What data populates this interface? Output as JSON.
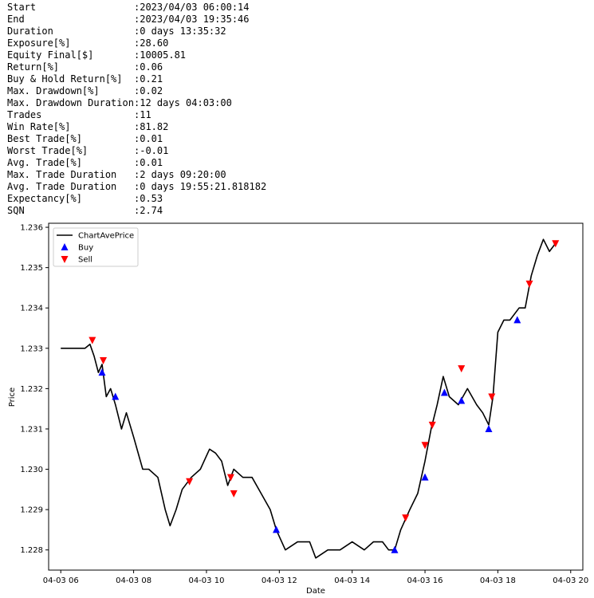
{
  "stats": [
    {
      "key": "Start",
      "value": ":2023/04/03 06:00:14"
    },
    {
      "key": "End",
      "value": ":2023/04/03 19:35:46"
    },
    {
      "key": "Duration",
      "value": ":0 days 13:35:32"
    },
    {
      "key": "Exposure[%]",
      "value": ":28.60"
    },
    {
      "key": "Equity Final[$]",
      "value": ":10005.81"
    },
    {
      "key": "Return[%]",
      "value": ":0.06"
    },
    {
      "key": "Buy & Hold Return[%]",
      "value": ":0.21"
    },
    {
      "key": "Max. Drawdown[%]",
      "value": ":0.02"
    },
    {
      "key": "Max. Drawdown Duration",
      "value": ":12 days 04:03:00"
    },
    {
      "key": "Trades",
      "value": ":11"
    },
    {
      "key": "Win Rate[%]",
      "value": ":81.82"
    },
    {
      "key": "Best Trade[%]",
      "value": ":0.01"
    },
    {
      "key": "Worst Trade[%]",
      "value": ":-0.01"
    },
    {
      "key": "Avg. Trade[%]",
      "value": ":0.01"
    },
    {
      "key": "Max. Trade Duration",
      "value": ":2 days 09:20:00"
    },
    {
      "key": "Avg. Trade Duration",
      "value": ":0 days 19:55:21.818182"
    },
    {
      "key": "Expectancy[%]",
      "value": ":0.53"
    },
    {
      "key": "SQN",
      "value": ":2.74"
    }
  ],
  "chart_data": {
    "type": "line",
    "xlabel": "Date",
    "ylabel": "Price",
    "xlim": [
      "2023-04-03 05:40",
      "2023-04-03 20:20"
    ],
    "ylim": [
      1.2275,
      1.2361
    ],
    "x_ticks": [
      {
        "t": "2023-04-03 06:00",
        "label": "04-03 06"
      },
      {
        "t": "2023-04-03 08:00",
        "label": "04-03 08"
      },
      {
        "t": "2023-04-03 10:00",
        "label": "04-03 10"
      },
      {
        "t": "2023-04-03 12:00",
        "label": "04-03 12"
      },
      {
        "t": "2023-04-03 14:00",
        "label": "04-03 14"
      },
      {
        "t": "2023-04-03 16:00",
        "label": "04-03 16"
      },
      {
        "t": "2023-04-03 18:00",
        "label": "04-03 18"
      },
      {
        "t": "2023-04-03 20:00",
        "label": "04-03 20"
      }
    ],
    "y_ticks": [
      {
        "v": 1.228,
        "label": "1.228"
      },
      {
        "v": 1.229,
        "label": "1.229"
      },
      {
        "v": 1.23,
        "label": "1.230"
      },
      {
        "v": 1.231,
        "label": "1.231"
      },
      {
        "v": 1.232,
        "label": "1.232"
      },
      {
        "v": 1.233,
        "label": "1.233"
      },
      {
        "v": 1.234,
        "label": "1.234"
      },
      {
        "v": 1.235,
        "label": "1.235"
      },
      {
        "v": 1.236,
        "label": "1.236"
      }
    ],
    "legend_position": "top-left",
    "legend": [
      {
        "label": "ChartAvePrice",
        "marker": "line",
        "color": "#000000"
      },
      {
        "label": "Buy",
        "marker": "triangle-up",
        "color": "#0000ff"
      },
      {
        "label": "Sell",
        "marker": "triangle-down",
        "color": "#ff0000"
      }
    ],
    "series": [
      {
        "name": "ChartAvePrice",
        "color": "#000000",
        "points": [
          {
            "x": "2023-04-03 06:00",
            "y": 1.233
          },
          {
            "x": "2023-04-03 06:20",
            "y": 1.233
          },
          {
            "x": "2023-04-03 06:40",
            "y": 1.233
          },
          {
            "x": "2023-04-03 06:48",
            "y": 1.2331
          },
          {
            "x": "2023-04-03 06:55",
            "y": 1.2328
          },
          {
            "x": "2023-04-03 07:02",
            "y": 1.2324
          },
          {
            "x": "2023-04-03 07:08",
            "y": 1.2326
          },
          {
            "x": "2023-04-03 07:15",
            "y": 1.2318
          },
          {
            "x": "2023-04-03 07:22",
            "y": 1.232
          },
          {
            "x": "2023-04-03 07:30",
            "y": 1.2316
          },
          {
            "x": "2023-04-03 07:40",
            "y": 1.231
          },
          {
            "x": "2023-04-03 07:48",
            "y": 1.2314
          },
          {
            "x": "2023-04-03 08:00",
            "y": 1.2308
          },
          {
            "x": "2023-04-03 08:15",
            "y": 1.23
          },
          {
            "x": "2023-04-03 08:25",
            "y": 1.23
          },
          {
            "x": "2023-04-03 08:40",
            "y": 1.2298
          },
          {
            "x": "2023-04-03 08:52",
            "y": 1.229
          },
          {
            "x": "2023-04-03 09:00",
            "y": 1.2286
          },
          {
            "x": "2023-04-03 09:10",
            "y": 1.229
          },
          {
            "x": "2023-04-03 09:20",
            "y": 1.2295
          },
          {
            "x": "2023-04-03 09:35",
            "y": 1.2298
          },
          {
            "x": "2023-04-03 09:50",
            "y": 1.23
          },
          {
            "x": "2023-04-03 10:05",
            "y": 1.2305
          },
          {
            "x": "2023-04-03 10:15",
            "y": 1.2304
          },
          {
            "x": "2023-04-03 10:25",
            "y": 1.2302
          },
          {
            "x": "2023-04-03 10:35",
            "y": 1.2296
          },
          {
            "x": "2023-04-03 10:45",
            "y": 1.23
          },
          {
            "x": "2023-04-03 11:00",
            "y": 1.2298
          },
          {
            "x": "2023-04-03 11:15",
            "y": 1.2298
          },
          {
            "x": "2023-04-03 11:30",
            "y": 1.2294
          },
          {
            "x": "2023-04-03 11:45",
            "y": 1.229
          },
          {
            "x": "2023-04-03 11:55",
            "y": 1.2285
          },
          {
            "x": "2023-04-03 12:10",
            "y": 1.228
          },
          {
            "x": "2023-04-03 12:30",
            "y": 1.2282
          },
          {
            "x": "2023-04-03 12:50",
            "y": 1.2282
          },
          {
            "x": "2023-04-03 13:00",
            "y": 1.2278
          },
          {
            "x": "2023-04-03 13:20",
            "y": 1.228
          },
          {
            "x": "2023-04-03 13:40",
            "y": 1.228
          },
          {
            "x": "2023-04-03 14:00",
            "y": 1.2282
          },
          {
            "x": "2023-04-03 14:20",
            "y": 1.228
          },
          {
            "x": "2023-04-03 14:35",
            "y": 1.2282
          },
          {
            "x": "2023-04-03 14:50",
            "y": 1.2282
          },
          {
            "x": "2023-04-03 15:00",
            "y": 1.228
          },
          {
            "x": "2023-04-03 15:10",
            "y": 1.228
          },
          {
            "x": "2023-04-03 15:20",
            "y": 1.2285
          },
          {
            "x": "2023-04-03 15:35",
            "y": 1.229
          },
          {
            "x": "2023-04-03 15:48",
            "y": 1.2294
          },
          {
            "x": "2023-04-03 16:00",
            "y": 1.2302
          },
          {
            "x": "2023-04-03 16:10",
            "y": 1.231
          },
          {
            "x": "2023-04-03 16:20",
            "y": 1.2316
          },
          {
            "x": "2023-04-03 16:30",
            "y": 1.2323
          },
          {
            "x": "2023-04-03 16:40",
            "y": 1.2318
          },
          {
            "x": "2023-04-03 16:55",
            "y": 1.2316
          },
          {
            "x": "2023-04-03 17:10",
            "y": 1.232
          },
          {
            "x": "2023-04-03 17:25",
            "y": 1.2316
          },
          {
            "x": "2023-04-03 17:35",
            "y": 1.2314
          },
          {
            "x": "2023-04-03 17:45",
            "y": 1.2311
          },
          {
            "x": "2023-04-03 17:52",
            "y": 1.2318
          },
          {
            "x": "2023-04-03 18:00",
            "y": 1.2334
          },
          {
            "x": "2023-04-03 18:10",
            "y": 1.2337
          },
          {
            "x": "2023-04-03 18:20",
            "y": 1.2337
          },
          {
            "x": "2023-04-03 18:35",
            "y": 1.234
          },
          {
            "x": "2023-04-03 18:45",
            "y": 1.234
          },
          {
            "x": "2023-04-03 18:55",
            "y": 1.2348
          },
          {
            "x": "2023-04-03 19:05",
            "y": 1.2353
          },
          {
            "x": "2023-04-03 19:15",
            "y": 1.2357
          },
          {
            "x": "2023-04-03 19:25",
            "y": 1.2354
          },
          {
            "x": "2023-04-03 19:35",
            "y": 1.2356
          }
        ]
      }
    ],
    "markers": {
      "buy": [
        {
          "x": "2023-04-03 07:08",
          "y": 1.2324
        },
        {
          "x": "2023-04-03 07:30",
          "y": 1.2318
        },
        {
          "x": "2023-04-03 11:55",
          "y": 1.2285
        },
        {
          "x": "2023-04-03 15:10",
          "y": 1.228
        },
        {
          "x": "2023-04-03 16:00",
          "y": 1.2298
        },
        {
          "x": "2023-04-03 16:32",
          "y": 1.2319
        },
        {
          "x": "2023-04-03 17:00",
          "y": 1.2317
        },
        {
          "x": "2023-04-03 17:45",
          "y": 1.231
        },
        {
          "x": "2023-04-03 18:32",
          "y": 1.2337
        }
      ],
      "sell": [
        {
          "x": "2023-04-03 06:52",
          "y": 1.2332
        },
        {
          "x": "2023-04-03 07:10",
          "y": 1.2327
        },
        {
          "x": "2023-04-03 09:32",
          "y": 1.2297
        },
        {
          "x": "2023-04-03 10:40",
          "y": 1.2298
        },
        {
          "x": "2023-04-03 10:45",
          "y": 1.2294
        },
        {
          "x": "2023-04-03 15:28",
          "y": 1.2288
        },
        {
          "x": "2023-04-03 16:00",
          "y": 1.2306
        },
        {
          "x": "2023-04-03 16:12",
          "y": 1.2311
        },
        {
          "x": "2023-04-03 17:00",
          "y": 1.2325
        },
        {
          "x": "2023-04-03 17:50",
          "y": 1.2318
        },
        {
          "x": "2023-04-03 18:52",
          "y": 1.2346
        },
        {
          "x": "2023-04-03 19:35",
          "y": 1.2356
        }
      ]
    }
  }
}
